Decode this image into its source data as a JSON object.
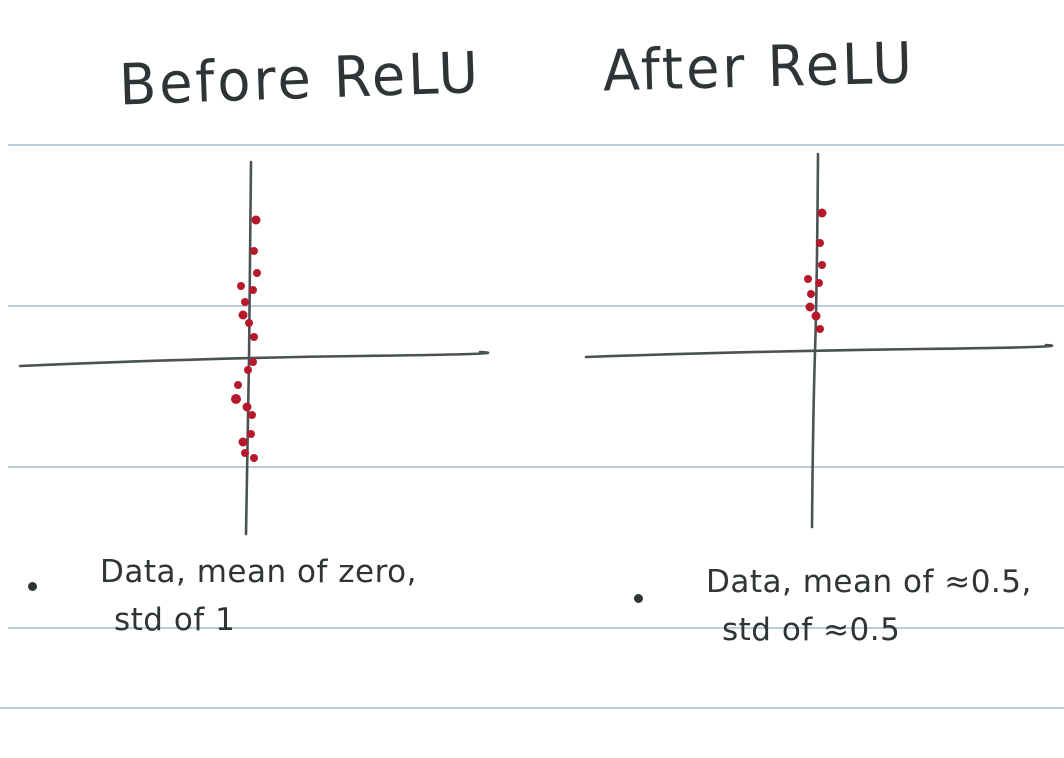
{
  "panels": [
    {
      "title": "Before ReLU",
      "notes": [
        "Data, mean of zero,",
        "std of 1"
      ],
      "point_color": "#b5192b"
    },
    {
      "title": "After ReLU",
      "notes": [
        "Data, mean of ≈0.5,",
        "std of ≈0.5"
      ],
      "point_color": "#b5192b"
    }
  ],
  "colors": {
    "ink": "#2f3437",
    "rule_line": "#a9bccb",
    "point": "#b5192b"
  }
}
